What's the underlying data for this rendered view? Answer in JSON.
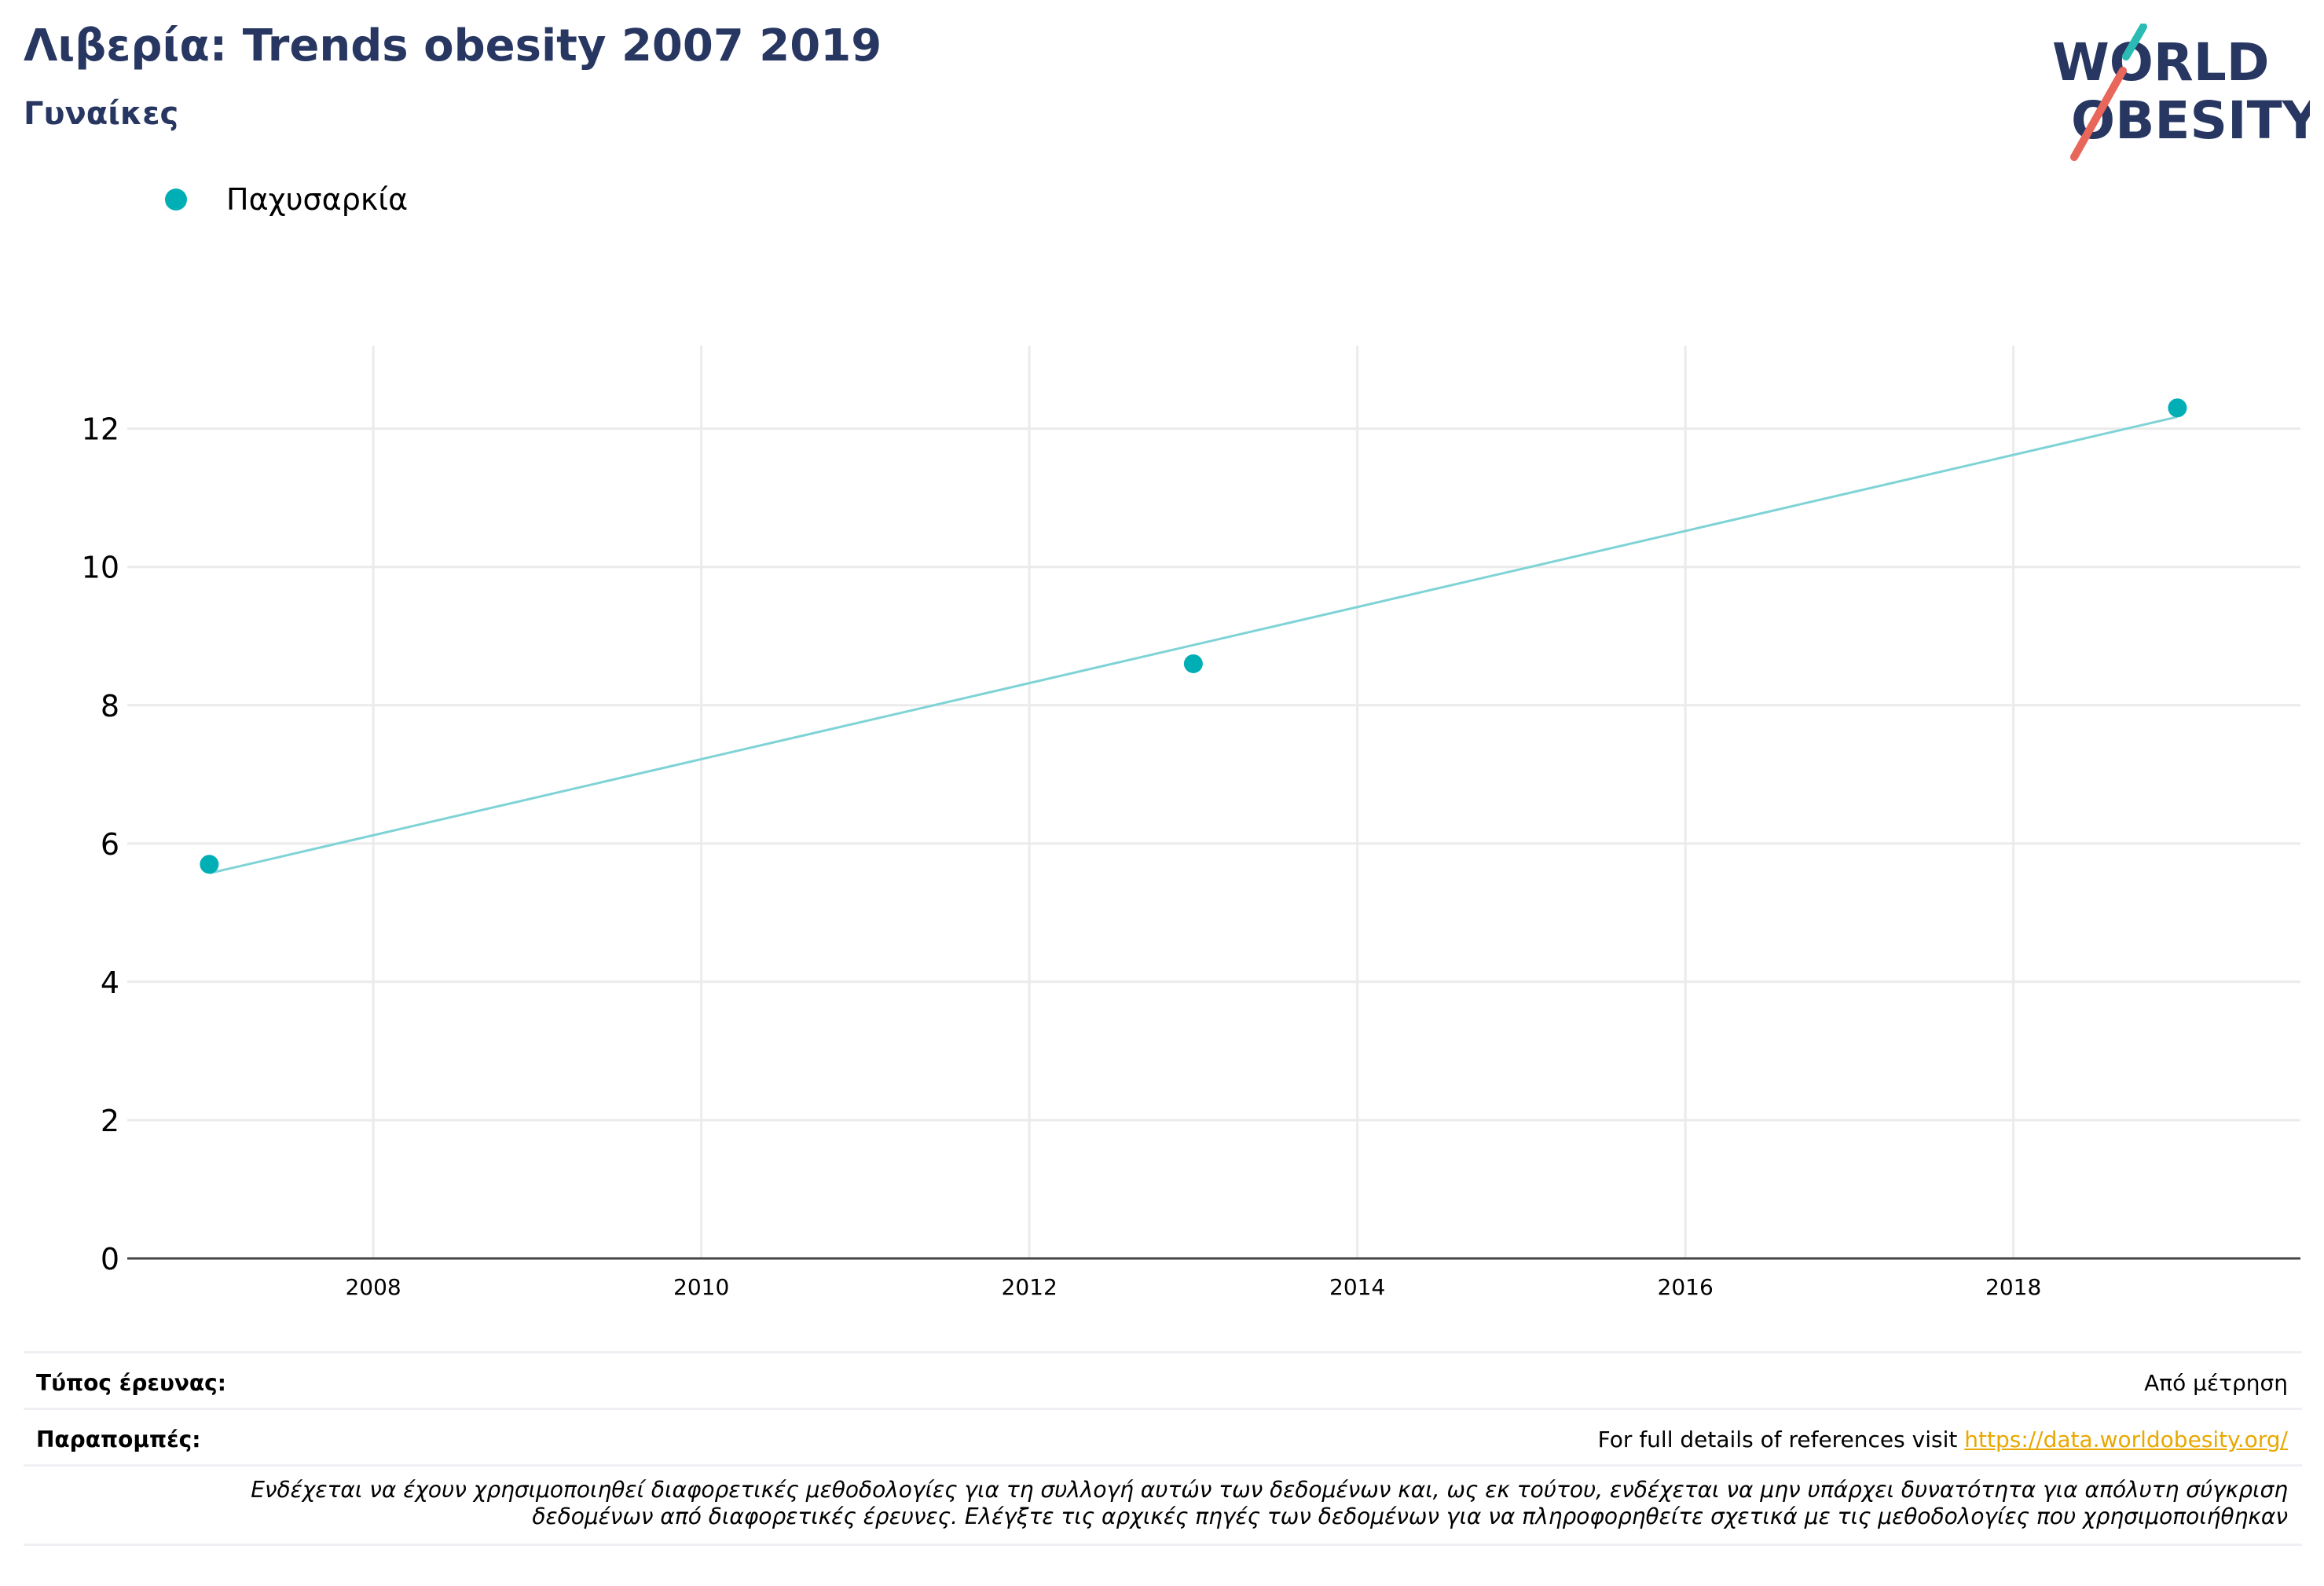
{
  "header": {
    "title": "Λιβερία: Trends obesity 2007 2019",
    "subtitle": "Γυναίκες"
  },
  "logo": {
    "line1": "WORLD",
    "line2": "OBESITY",
    "accent_teal": "#2bbbb5",
    "accent_red": "#e8665a",
    "text_color": "#283762"
  },
  "legend": {
    "items": [
      {
        "label": "Παχυσαρκία",
        "color": "#00aeb5"
      }
    ]
  },
  "chart_data": {
    "type": "scatter",
    "title": "Λιβερία: Trends obesity 2007 2019",
    "subtitle": "Γυναίκες",
    "xlabel": "",
    "ylabel": "",
    "xlim": [
      2006.5,
      2019.75
    ],
    "ylim": [
      0,
      13.2
    ],
    "x_ticks": [
      2008,
      2010,
      2012,
      2014,
      2016,
      2018
    ],
    "y_ticks": [
      0,
      2,
      4,
      6,
      8,
      10,
      12
    ],
    "grid": true,
    "legend_position": "top-left",
    "series": [
      {
        "name": "Παχυσαρκία",
        "color": "#00aeb5",
        "points": [
          {
            "x": 2007,
            "y": 5.7
          },
          {
            "x": 2013,
            "y": 8.6
          },
          {
            "x": 2019,
            "y": 12.3
          }
        ]
      }
    ],
    "trendline": {
      "color": "#7fd3d6",
      "start": {
        "x": 2007,
        "y": 5.57
      },
      "end": {
        "x": 2019,
        "y": 12.17
      }
    }
  },
  "footer": {
    "survey_type_label": "Τύπος έρευνας:",
    "survey_type_value": "Από μέτρηση",
    "references_label": "Παραπομπές:",
    "references_text": "For full details of references visit ",
    "references_link": "https://data.worldobesity.org/",
    "note_line1": "Ενδέχεται να έχουν χρησιμοποιηθεί διαφορετικές μεθοδολογίες για τη συλλογή αυτών των δεδομένων και, ως εκ τούτου, ενδέχεται να μην υπάρχει δυνατότητα για απόλυτη σύγκριση",
    "note_line2": "δεδομένων από διαφορετικές έρευνες. Ελέγξτε τις αρχικές πηγές των δεδομένων για να πληροφορηθείτε σχετικά με τις μεθοδολογίες που χρησιμοποιήθηκαν"
  }
}
